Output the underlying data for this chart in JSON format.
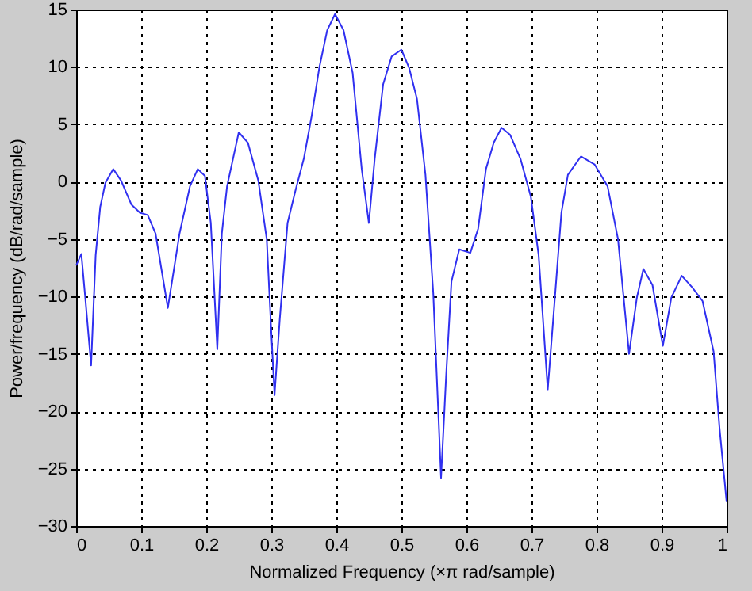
{
  "chart_data": {
    "type": "line",
    "xlabel": "Normalized Frequency  (×π rad/sample)",
    "ylabel": "Power/frequency (dB/rad/sample)",
    "x": [
      0,
      0.008,
      0.014,
      0.023,
      0.03,
      0.037,
      0.045,
      0.057,
      0.069,
      0.085,
      0.098,
      0.11,
      0.122,
      0.141,
      0.159,
      0.175,
      0.187,
      0.198,
      0.207,
      0.217,
      0.224,
      0.232,
      0.25,
      0.264,
      0.28,
      0.293,
      0.299,
      0.305,
      0.313,
      0.325,
      0.337,
      0.35,
      0.362,
      0.374,
      0.386,
      0.398,
      0.411,
      0.425,
      0.439,
      0.45,
      0.459,
      0.472,
      0.485,
      0.5,
      0.512,
      0.524,
      0.537,
      0.549,
      0.561,
      0.569,
      0.577,
      0.589,
      0.606,
      0.618,
      0.63,
      0.642,
      0.654,
      0.667,
      0.683,
      0.699,
      0.711,
      0.725,
      0.736,
      0.746,
      0.756,
      0.776,
      0.797,
      0.817,
      0.833,
      0.85,
      0.862,
      0.872,
      0.886,
      0.902,
      0.915,
      0.931,
      0.947,
      0.963,
      0.98,
      0.989,
      1.0
    ],
    "series": [
      {
        "color": "#3030f0",
        "values": [
          -7.3,
          -6.3,
          -10.1,
          -16,
          -6.4,
          -2.2,
          -0.1,
          1.1,
          0.1,
          -2,
          -2.7,
          -2.9,
          -4.5,
          -11,
          -4.5,
          -0.4,
          1.1,
          0.5,
          -3.6,
          -14.6,
          -4.5,
          -0.4,
          4.3,
          3.4,
          0.1,
          -5,
          -12,
          -18.6,
          -12,
          -3.6,
          -0.8,
          2,
          5.7,
          10,
          13.2,
          14.6,
          13.2,
          9.5,
          1.1,
          -3.6,
          2,
          8.5,
          10.9,
          11.5,
          9.9,
          7.2,
          0.6,
          -9.7,
          -25.8,
          -16.7,
          -8.7,
          -5.9,
          -6.2,
          -4.1,
          1.1,
          3.4,
          4.7,
          4.1,
          2,
          -1.3,
          -6.4,
          -18.1,
          -10.1,
          -2.7,
          0.6,
          2.2,
          1.5,
          -0.4,
          -5,
          -15,
          -10.1,
          -7.6,
          -9,
          -14.3,
          -10.1,
          -8.2,
          -9.2,
          -10.4,
          -14.8,
          -21.4,
          -27.9
        ]
      }
    ],
    "xlim": [
      0,
      1
    ],
    "xticks": [
      0,
      0.1,
      0.2,
      0.3,
      0.4,
      0.5,
      0.6,
      0.7,
      0.8,
      0.9,
      1
    ],
    "ylim": [
      -30,
      15
    ],
    "yticks": [
      -30,
      -25,
      -20,
      -15,
      -10,
      -5,
      0,
      5,
      10,
      15
    ],
    "grid": true,
    "marker": "none",
    "line_style": "solid"
  }
}
